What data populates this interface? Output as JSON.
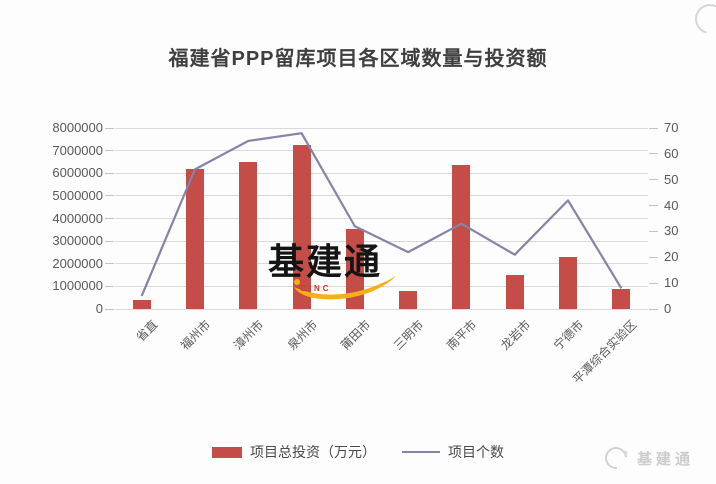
{
  "title": "福建省PPP留库项目各区域数量与投资额",
  "watermark": {
    "text": "基建通",
    "subtext": "CINC"
  },
  "footer_logo": {
    "text": "基建通"
  },
  "chart_data": {
    "type": "bar",
    "combo": "bar + line, dual axis",
    "title": "福建省PPP留库项目各区域数量与投资额",
    "categories": [
      "省直",
      "福州市",
      "漳州市",
      "泉州市",
      "莆田市",
      "三明市",
      "南平市",
      "龙岩市",
      "宁德市",
      "平潭综合实验区"
    ],
    "series": [
      {
        "name": "项目总投资（万元）",
        "type": "bar",
        "axis": "left",
        "values": [
          400000,
          6200000,
          6500000,
          7250000,
          3550000,
          800000,
          6350000,
          1500000,
          2300000,
          900000
        ]
      },
      {
        "name": "项目个数",
        "type": "line",
        "axis": "right",
        "values": [
          5,
          54,
          65,
          68,
          32,
          22,
          33,
          21,
          42,
          8
        ]
      }
    ],
    "left_axis": {
      "min": 0,
      "max": 8000000,
      "step": 1000000,
      "tick_labels": [
        "0",
        "1000000",
        "2000000",
        "3000000",
        "4000000",
        "5000000",
        "6000000",
        "7000000",
        "8000000"
      ]
    },
    "right_axis": {
      "min": 0,
      "max": 70,
      "step": 10,
      "tick_labels": [
        "0",
        "10",
        "20",
        "30",
        "40",
        "50",
        "60",
        "70"
      ]
    },
    "grid": true,
    "legend_position": "bottom",
    "colors": {
      "bar": "#c44d48",
      "line": "#8583a8",
      "gridline": "#d9d9d9",
      "axis_text": "#595959",
      "title_text": "#3f3f3f",
      "watermark_swoosh": "#f9b016"
    }
  }
}
